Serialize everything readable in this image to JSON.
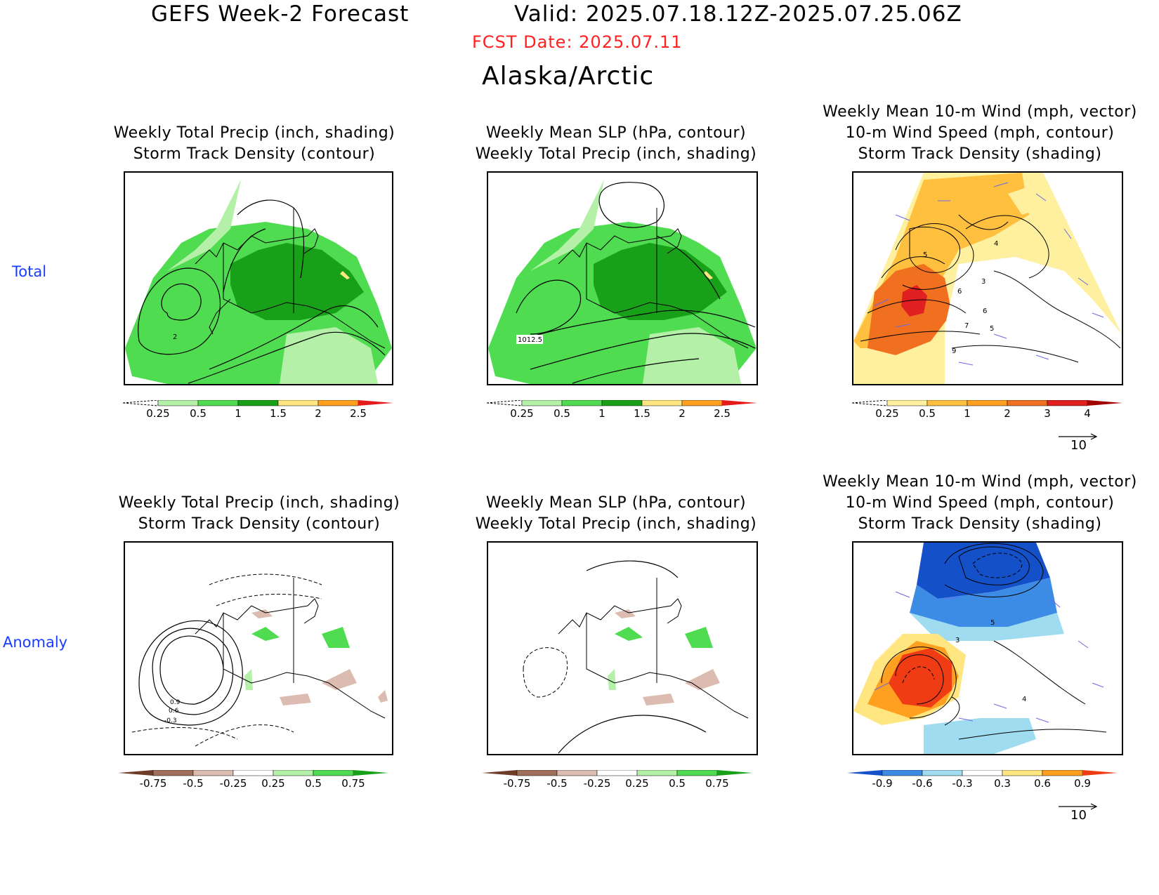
{
  "header": {
    "title": "GEFS Week-2 Forecast",
    "valid": "Valid: 2025.07.18.12Z-2025.07.25.06Z",
    "fcst_date": "FCST Date: 2025.07.11",
    "region": "Alaska/Arctic"
  },
  "rows": {
    "total": "Total",
    "anomaly": "Anomaly"
  },
  "panels": {
    "t1": {
      "title1": "Weekly Total Precip (inch, shading)",
      "title2": "Storm Track Density (contour)",
      "label": "2"
    },
    "t2": {
      "title1": "Weekly Mean SLP (hPa, contour)",
      "title2": "Weekly Total Precip (inch, shading)",
      "label": "1012.5"
    },
    "t3": {
      "title1": "Weekly Mean 10-m Wind (mph, vector)",
      "title2": "10-m Wind Speed (mph, contour)",
      "title3": "Storm Track Density (shading)",
      "labels": [
        "4",
        "5",
        "6",
        "3",
        "7",
        "6",
        "5",
        "9"
      ],
      "vector_ref": "10"
    },
    "a1": {
      "title1": "Weekly Total Precip (inch, shading)",
      "title2": "Storm Track Density (contour)",
      "labels": [
        "0.9",
        "0.6",
        "-0.3"
      ]
    },
    "a2": {
      "title1": "Weekly Mean SLP (hPa, contour)",
      "title2": "Weekly Total Precip (inch, shading)"
    },
    "a3": {
      "title1": "Weekly Mean 10-m Wind (mph, vector)",
      "title2": "10-m Wind Speed (mph, contour)",
      "title3": "Storm Track Density (shading)",
      "labels": [
        "5",
        "3",
        "4"
      ],
      "vector_ref": "10"
    }
  },
  "colorbars": {
    "precip_total": {
      "ticks": [
        "0.25",
        "0.5",
        "1",
        "1.5",
        "2",
        "2.5"
      ],
      "colors": [
        "#ffffff",
        "#b4f0a8",
        "#50dc50",
        "#19a019",
        "#ffe680",
        "#ffa020",
        "#e61a1a"
      ]
    },
    "storm_total": {
      "ticks": [
        "0.25",
        "0.5",
        "1",
        "2",
        "3",
        "4"
      ],
      "colors": [
        "#ffffff",
        "#fff0a0",
        "#ffc040",
        "#ffa020",
        "#f07020",
        "#e02020",
        "#a00000"
      ]
    },
    "precip_anom": {
      "ticks": [
        "-0.75",
        "-0.5",
        "-0.25",
        "0.25",
        "0.5",
        "0.75"
      ],
      "colors": [
        "#6e3c28",
        "#a0705a",
        "#dcbcb0",
        "#ffffff",
        "#b4f0a8",
        "#50dc50",
        "#19a019"
      ]
    },
    "storm_anom": {
      "ticks": [
        "-0.9",
        "-0.6",
        "-0.3",
        "0.3",
        "0.6",
        "0.9"
      ],
      "colors": [
        "#1450c8",
        "#3c8ce6",
        "#a0dcf0",
        "#ffffff",
        "#ffe680",
        "#ffa020",
        "#f03c14"
      ]
    }
  }
}
